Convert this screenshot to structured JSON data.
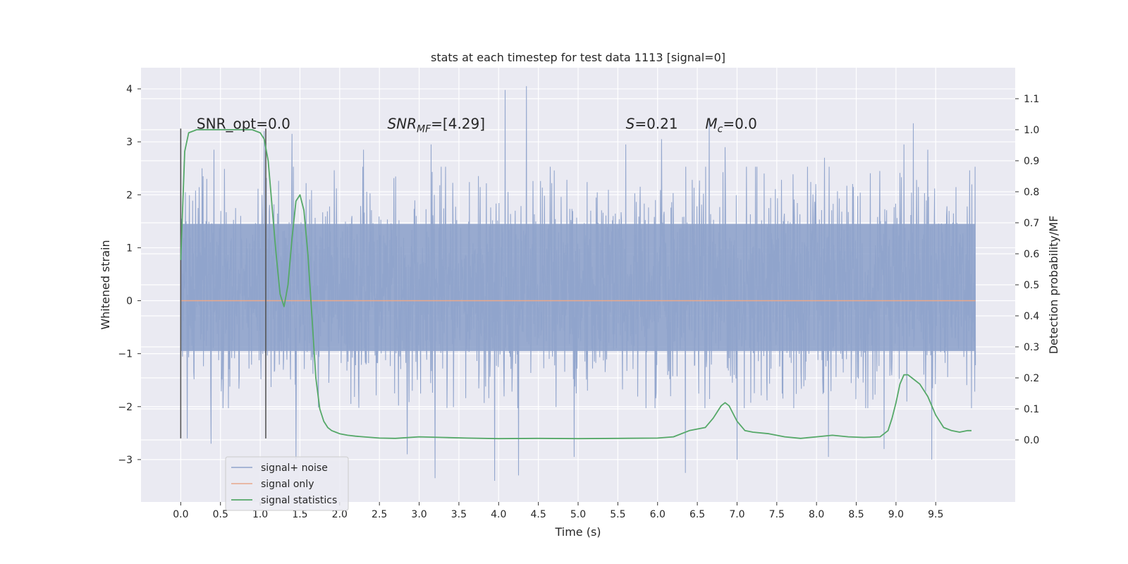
{
  "chart_data": {
    "type": "line",
    "title": "stats at each timestep for test data 1113 [signal=0]",
    "xlabel": "Time (s)",
    "ylabel": "Whitened strain",
    "y2label": "Detection probability/MF",
    "xlim": [
      -0.5,
      10.5
    ],
    "ylim": [
      -3.8,
      4.4
    ],
    "y2lim": [
      -0.2,
      1.2
    ],
    "x_ticks": [
      0.0,
      0.5,
      1.0,
      1.5,
      2.0,
      2.5,
      3.0,
      3.5,
      4.0,
      4.5,
      5.0,
      5.5,
      6.0,
      6.5,
      7.0,
      7.5,
      8.0,
      8.5,
      9.0,
      9.5
    ],
    "x_tick_labels": [
      "0.0",
      "0.5",
      "1.0",
      "1.5",
      "2.0",
      "2.5",
      "3.0",
      "3.5",
      "4.0",
      "4.5",
      "5.0",
      "5.5",
      "6.0",
      "6.5",
      "7.0",
      "7.5",
      "8.0",
      "8.5",
      "9.0",
      "9.5"
    ],
    "y_ticks": [
      -3,
      -2,
      -1,
      0,
      1,
      2,
      3,
      4
    ],
    "y_tick_labels": [
      "−3",
      "−2",
      "−1",
      "0",
      "1",
      "2",
      "3",
      "4"
    ],
    "y2_ticks": [
      0.0,
      0.1,
      0.2,
      0.3,
      0.4,
      0.5,
      0.6,
      0.7,
      0.8,
      0.9,
      1.0,
      1.1
    ],
    "y2_tick_labels": [
      "0.0",
      "0.1",
      "0.2",
      "0.3",
      "0.4",
      "0.5",
      "0.6",
      "0.7",
      "0.8",
      "0.9",
      "1.0",
      "1.1"
    ],
    "grid": true,
    "legend_position": "lower-left",
    "colors": {
      "background": "#eaeaf2",
      "grid": "#ffffff",
      "noise": "#8fa3cb",
      "signal": "#e8a88b",
      "stat": "#55a868",
      "marker": "#555555"
    },
    "series": [
      {
        "name": "signal+ noise",
        "axis": "left",
        "x_range": [
          0.0,
          10.0
        ],
        "core_band": [
          -0.95,
          1.45
        ],
        "max_peaks": [
          [
            0.06,
            2.05
          ],
          [
            0.42,
            2.85
          ],
          [
            1.05,
            3.2
          ],
          [
            1.4,
            3.15
          ],
          [
            2.3,
            2.85
          ],
          [
            3.15,
            2.95
          ],
          [
            3.95,
            2.9
          ],
          [
            4.08,
            3.98
          ],
          [
            4.35,
            4.05
          ],
          [
            5.6,
            2.95
          ],
          [
            6.05,
            3.05
          ],
          [
            6.65,
            3.45
          ],
          [
            6.85,
            2.9
          ],
          [
            8.1,
            2.7
          ],
          [
            9.1,
            2.95
          ],
          [
            9.22,
            3.35
          ],
          [
            9.4,
            2.85
          ]
        ],
        "min_peaks": [
          [
            0.08,
            -2.6
          ],
          [
            0.38,
            -2.7
          ],
          [
            1.45,
            -3.0
          ],
          [
            2.85,
            -2.9
          ],
          [
            3.2,
            -3.35
          ],
          [
            3.95,
            -3.4
          ],
          [
            4.25,
            -3.3
          ],
          [
            4.95,
            -2.95
          ],
          [
            6.35,
            -3.25
          ],
          [
            7.0,
            -3.0
          ],
          [
            8.15,
            -2.95
          ],
          [
            8.85,
            -2.8
          ],
          [
            9.45,
            -3.0
          ]
        ]
      },
      {
        "name": "signal only",
        "axis": "left",
        "x": [
          0.0,
          10.0
        ],
        "y": [
          0.0,
          0.0
        ]
      },
      {
        "name": "signal statistics",
        "axis": "right",
        "x": [
          0.0,
          0.05,
          0.1,
          0.2,
          0.3,
          0.5,
          0.7,
          0.9,
          1.0,
          1.05,
          1.1,
          1.15,
          1.2,
          1.25,
          1.3,
          1.35,
          1.4,
          1.45,
          1.5,
          1.55,
          1.6,
          1.65,
          1.7,
          1.75,
          1.8,
          1.85,
          1.9,
          1.95,
          2.0,
          2.1,
          2.2,
          2.3,
          2.4,
          2.5,
          2.7,
          3.0,
          3.3,
          3.6,
          4.0,
          4.5,
          5.0,
          5.5,
          6.0,
          6.2,
          6.4,
          6.6,
          6.7,
          6.8,
          6.85,
          6.9,
          7.0,
          7.1,
          7.2,
          7.4,
          7.6,
          7.8,
          8.0,
          8.2,
          8.4,
          8.6,
          8.8,
          8.9,
          8.95,
          9.0,
          9.05,
          9.1,
          9.15,
          9.2,
          9.3,
          9.4,
          9.5,
          9.6,
          9.7,
          9.8,
          9.9,
          9.95
        ],
        "y": [
          0.58,
          0.93,
          0.99,
          1.0,
          1.0,
          1.0,
          1.0,
          1.0,
          0.99,
          0.97,
          0.9,
          0.75,
          0.6,
          0.47,
          0.43,
          0.5,
          0.65,
          0.77,
          0.79,
          0.74,
          0.6,
          0.4,
          0.2,
          0.1,
          0.06,
          0.04,
          0.03,
          0.025,
          0.02,
          0.015,
          0.012,
          0.01,
          0.008,
          0.006,
          0.005,
          0.01,
          0.008,
          0.006,
          0.004,
          0.005,
          0.004,
          0.005,
          0.006,
          0.01,
          0.03,
          0.04,
          0.07,
          0.11,
          0.12,
          0.11,
          0.06,
          0.03,
          0.025,
          0.02,
          0.01,
          0.005,
          0.01,
          0.015,
          0.01,
          0.008,
          0.01,
          0.03,
          0.07,
          0.12,
          0.18,
          0.21,
          0.21,
          0.2,
          0.18,
          0.14,
          0.08,
          0.04,
          0.03,
          0.025,
          0.03,
          0.03
        ]
      }
    ],
    "vertical_markers": [
      {
        "x": 0.0,
        "y_range": [
          -2.6,
          3.25
        ]
      },
      {
        "x": 1.07,
        "y_range": [
          -2.6,
          3.25
        ]
      }
    ],
    "annotations": [
      {
        "text": "SNR_opt=0.0",
        "x": 0.2,
        "y": 3.25,
        "italic": false
      },
      {
        "text": "SNR",
        "sub": "MF",
        "suffix": "=[4.29]",
        "x": 2.6,
        "y": 3.25,
        "italic": true
      },
      {
        "text": "S",
        "suffix": "=0.21",
        "x": 5.6,
        "y": 3.25,
        "italic": true
      },
      {
        "text": "M",
        "sub": "c",
        "suffix": "=0.0",
        "x": 6.6,
        "y": 3.25,
        "italic": true
      }
    ]
  }
}
